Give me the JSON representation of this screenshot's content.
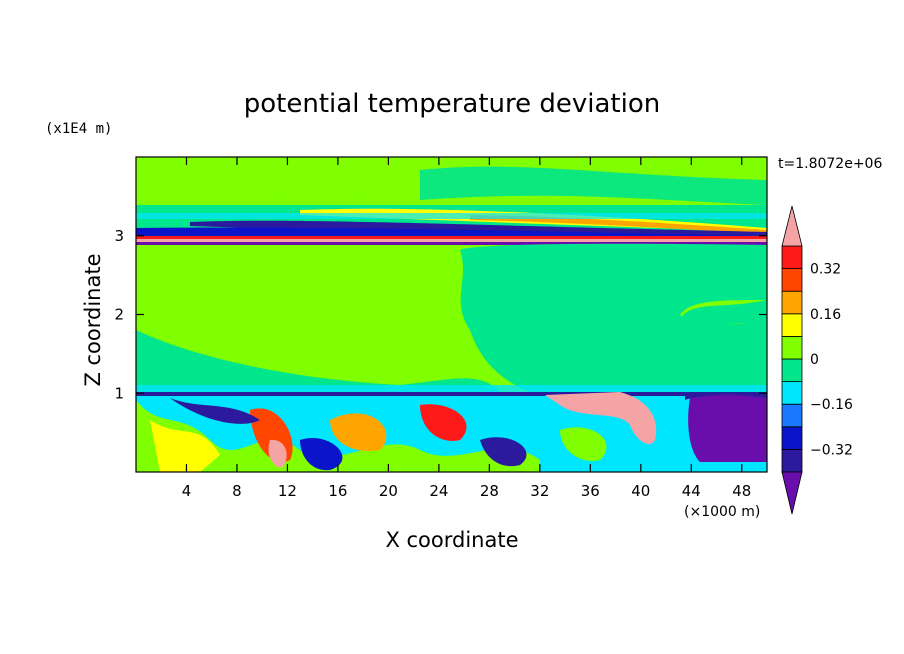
{
  "chart_data": {
    "type": "heatmap",
    "title": "potential temperature deviation",
    "time_label": "t=1.8072e+06",
    "xlabel": "X coordinate",
    "ylabel": "Z coordinate",
    "x_unit": "(×1000 m)",
    "y_unit": "(x1E4 m)",
    "xlim": [
      0,
      50
    ],
    "ylim": [
      0,
      4
    ],
    "x_ticks": [
      4,
      8,
      12,
      16,
      20,
      24,
      28,
      32,
      36,
      40,
      44,
      48
    ],
    "y_ticks": [
      1,
      2,
      3
    ],
    "colorbar": {
      "levels": [
        -0.4,
        -0.32,
        -0.24,
        -0.16,
        -0.08,
        0,
        0.08,
        0.16,
        0.24,
        0.32,
        0.4
      ],
      "labels": [
        "0.32",
        "0.16",
        "0",
        "−0.16",
        "−0.32"
      ],
      "label_values": [
        0.32,
        0.16,
        0,
        -0.16,
        -0.32
      ],
      "colors": [
        "#6a0dad",
        "#2b1a9e",
        "#0a14c8",
        "#1a78ff",
        "#00e6ff",
        "#00e68c",
        "#7fff00",
        "#ffff00",
        "#ffa500",
        "#ff4500",
        "#ff1a1a",
        "#f4a4a4"
      ],
      "extend": "both"
    },
    "background_value_color": "#00e68c",
    "lower_layer_color": "#7fff00"
  }
}
